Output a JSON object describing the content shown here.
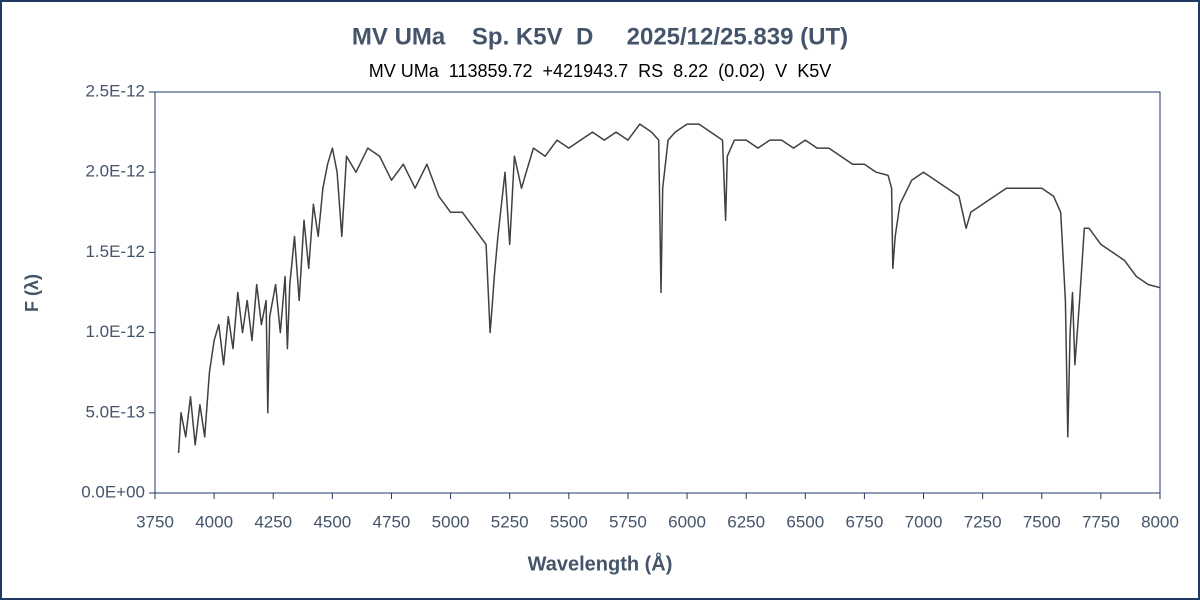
{
  "chart_data": {
    "type": "line",
    "title": "MV UMa    Sp. K5V  D     2025/12/25.839 (UT)",
    "subtitle": "MV UMa  113859.72  +421943.7  RS  8.22  (0.02)  V  K5V",
    "xlabel": "Wavelength (Å)",
    "ylabel": "F (λ)",
    "xlim": [
      3750,
      8000
    ],
    "xticks": [
      3750,
      4000,
      4250,
      4500,
      4750,
      5000,
      5250,
      5500,
      5750,
      6000,
      6250,
      6500,
      6750,
      7000,
      7250,
      7500,
      7750,
      8000
    ],
    "ylim": [
      0,
      2.5e-12
    ],
    "yticks": [
      {
        "value": 0,
        "label": "0.0E+00"
      },
      {
        "value": 5e-13,
        "label": "5.0E-13"
      },
      {
        "value": 1e-12,
        "label": "1.0E-12"
      },
      {
        "value": 1.5e-12,
        "label": "1.5E-12"
      },
      {
        "value": 2e-12,
        "label": "2.0E-12"
      },
      {
        "value": 2.5e-12,
        "label": "2.5E-12"
      }
    ],
    "color": "#404040",
    "grid": false,
    "x": [
      3850,
      3860,
      3880,
      3900,
      3920,
      3940,
      3960,
      3980,
      4000,
      4020,
      4040,
      4060,
      4080,
      4100,
      4120,
      4140,
      4160,
      4180,
      4200,
      4220,
      4227,
      4235,
      4260,
      4280,
      4300,
      4310,
      4320,
      4340,
      4360,
      4380,
      4400,
      4420,
      4440,
      4460,
      4480,
      4500,
      4520,
      4540,
      4560,
      4600,
      4650,
      4700,
      4750,
      4800,
      4850,
      4900,
      4950,
      5000,
      5050,
      5100,
      5150,
      5167,
      5175,
      5185,
      5200,
      5230,
      5250,
      5270,
      5300,
      5350,
      5400,
      5450,
      5500,
      5550,
      5600,
      5650,
      5700,
      5750,
      5800,
      5850,
      5880,
      5890,
      5897,
      5920,
      5950,
      6000,
      6050,
      6100,
      6150,
      6163,
      6170,
      6200,
      6250,
      6300,
      6350,
      6400,
      6450,
      6500,
      6550,
      6600,
      6650,
      6700,
      6750,
      6800,
      6850,
      6865,
      6870,
      6880,
      6900,
      6950,
      7000,
      7050,
      7100,
      7150,
      7180,
      7200,
      7250,
      7300,
      7350,
      7400,
      7450,
      7500,
      7550,
      7580,
      7600,
      7610,
      7620,
      7630,
      7640,
      7660,
      7680,
      7700,
      7750,
      7800,
      7850,
      7900,
      7950,
      8000
    ],
    "values": [
      2.5e-13,
      5e-13,
      3.5e-13,
      6e-13,
      3e-13,
      5.5e-13,
      3.5e-13,
      7.5e-13,
      9.5e-13,
      1.05e-12,
      8e-13,
      1.1e-12,
      9e-13,
      1.25e-12,
      1e-12,
      1.2e-12,
      9.5e-13,
      1.3e-12,
      1.05e-12,
      1.2e-12,
      5e-13,
      1.1e-12,
      1.3e-12,
      1e-12,
      1.35e-12,
      9e-13,
      1.3e-12,
      1.6e-12,
      1.2e-12,
      1.7e-12,
      1.4e-12,
      1.8e-12,
      1.6e-12,
      1.9e-12,
      2.05e-12,
      2.15e-12,
      2e-12,
      1.6e-12,
      2.1e-12,
      2e-12,
      2.15e-12,
      2.1e-12,
      1.95e-12,
      2.05e-12,
      1.9e-12,
      2.05e-12,
      1.85e-12,
      1.75e-12,
      1.75e-12,
      1.65e-12,
      1.55e-12,
      1e-12,
      1.15e-12,
      1.35e-12,
      1.6e-12,
      2e-12,
      1.55e-12,
      2.1e-12,
      1.9e-12,
      2.15e-12,
      2.1e-12,
      2.2e-12,
      2.15e-12,
      2.2e-12,
      2.25e-12,
      2.2e-12,
      2.25e-12,
      2.2e-12,
      2.3e-12,
      2.25e-12,
      2.2e-12,
      1.25e-12,
      1.9e-12,
      2.2e-12,
      2.25e-12,
      2.3e-12,
      2.3e-12,
      2.25e-12,
      2.2e-12,
      1.7e-12,
      2.1e-12,
      2.2e-12,
      2.2e-12,
      2.15e-12,
      2.2e-12,
      2.2e-12,
      2.15e-12,
      2.2e-12,
      2.15e-12,
      2.15e-12,
      2.1e-12,
      2.05e-12,
      2.05e-12,
      2e-12,
      1.98e-12,
      1.9e-12,
      1.4e-12,
      1.6e-12,
      1.8e-12,
      1.95e-12,
      2e-12,
      1.95e-12,
      1.9e-12,
      1.85e-12,
      1.65e-12,
      1.75e-12,
      1.8e-12,
      1.85e-12,
      1.9e-12,
      1.9e-12,
      1.9e-12,
      1.9e-12,
      1.85e-12,
      1.75e-12,
      1.2e-12,
      3.5e-13,
      1e-12,
      1.25e-12,
      8e-13,
      1.2e-12,
      1.65e-12,
      1.65e-12,
      1.55e-12,
      1.5e-12,
      1.45e-12,
      1.35e-12,
      1.3e-12,
      1.28e-12
    ]
  }
}
